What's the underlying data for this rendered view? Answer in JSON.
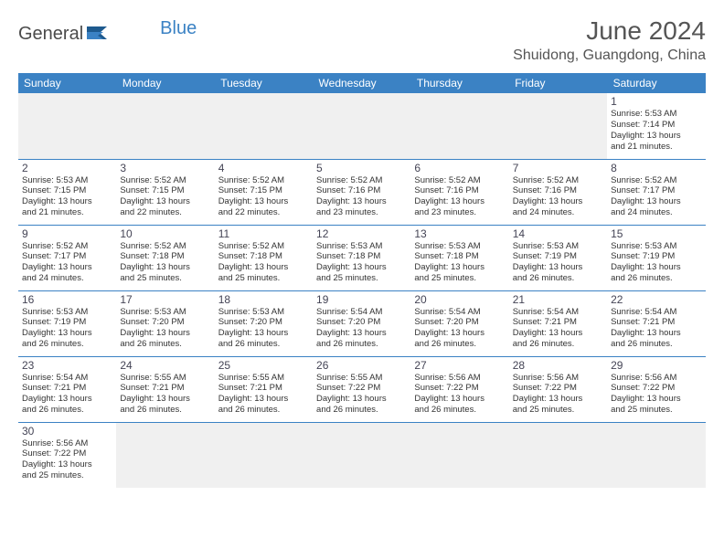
{
  "logo": {
    "part1": "General",
    "part2": "Blue"
  },
  "title": "June 2024",
  "location": "Shuidong, Guangdong, China",
  "colors": {
    "header_bg": "#3b82c4",
    "header_text": "#ffffff",
    "border": "#3b82c4",
    "empty_bg": "#f0f0f0",
    "text": "#333333",
    "title_color": "#555555"
  },
  "weekdays": [
    "Sunday",
    "Monday",
    "Tuesday",
    "Wednesday",
    "Thursday",
    "Friday",
    "Saturday"
  ],
  "weeks": [
    [
      null,
      null,
      null,
      null,
      null,
      null,
      {
        "d": "1",
        "sr": "5:53 AM",
        "ss": "7:14 PM",
        "dh": "13",
        "dm": "21"
      }
    ],
    [
      {
        "d": "2",
        "sr": "5:53 AM",
        "ss": "7:15 PM",
        "dh": "13",
        "dm": "21"
      },
      {
        "d": "3",
        "sr": "5:52 AM",
        "ss": "7:15 PM",
        "dh": "13",
        "dm": "22"
      },
      {
        "d": "4",
        "sr": "5:52 AM",
        "ss": "7:15 PM",
        "dh": "13",
        "dm": "22"
      },
      {
        "d": "5",
        "sr": "5:52 AM",
        "ss": "7:16 PM",
        "dh": "13",
        "dm": "23"
      },
      {
        "d": "6",
        "sr": "5:52 AM",
        "ss": "7:16 PM",
        "dh": "13",
        "dm": "23"
      },
      {
        "d": "7",
        "sr": "5:52 AM",
        "ss": "7:16 PM",
        "dh": "13",
        "dm": "24"
      },
      {
        "d": "8",
        "sr": "5:52 AM",
        "ss": "7:17 PM",
        "dh": "13",
        "dm": "24"
      }
    ],
    [
      {
        "d": "9",
        "sr": "5:52 AM",
        "ss": "7:17 PM",
        "dh": "13",
        "dm": "24"
      },
      {
        "d": "10",
        "sr": "5:52 AM",
        "ss": "7:18 PM",
        "dh": "13",
        "dm": "25"
      },
      {
        "d": "11",
        "sr": "5:52 AM",
        "ss": "7:18 PM",
        "dh": "13",
        "dm": "25"
      },
      {
        "d": "12",
        "sr": "5:53 AM",
        "ss": "7:18 PM",
        "dh": "13",
        "dm": "25"
      },
      {
        "d": "13",
        "sr": "5:53 AM",
        "ss": "7:18 PM",
        "dh": "13",
        "dm": "25"
      },
      {
        "d": "14",
        "sr": "5:53 AM",
        "ss": "7:19 PM",
        "dh": "13",
        "dm": "26"
      },
      {
        "d": "15",
        "sr": "5:53 AM",
        "ss": "7:19 PM",
        "dh": "13",
        "dm": "26"
      }
    ],
    [
      {
        "d": "16",
        "sr": "5:53 AM",
        "ss": "7:19 PM",
        "dh": "13",
        "dm": "26"
      },
      {
        "d": "17",
        "sr": "5:53 AM",
        "ss": "7:20 PM",
        "dh": "13",
        "dm": "26"
      },
      {
        "d": "18",
        "sr": "5:53 AM",
        "ss": "7:20 PM",
        "dh": "13",
        "dm": "26"
      },
      {
        "d": "19",
        "sr": "5:54 AM",
        "ss": "7:20 PM",
        "dh": "13",
        "dm": "26"
      },
      {
        "d": "20",
        "sr": "5:54 AM",
        "ss": "7:20 PM",
        "dh": "13",
        "dm": "26"
      },
      {
        "d": "21",
        "sr": "5:54 AM",
        "ss": "7:21 PM",
        "dh": "13",
        "dm": "26"
      },
      {
        "d": "22",
        "sr": "5:54 AM",
        "ss": "7:21 PM",
        "dh": "13",
        "dm": "26"
      }
    ],
    [
      {
        "d": "23",
        "sr": "5:54 AM",
        "ss": "7:21 PM",
        "dh": "13",
        "dm": "26"
      },
      {
        "d": "24",
        "sr": "5:55 AM",
        "ss": "7:21 PM",
        "dh": "13",
        "dm": "26"
      },
      {
        "d": "25",
        "sr": "5:55 AM",
        "ss": "7:21 PM",
        "dh": "13",
        "dm": "26"
      },
      {
        "d": "26",
        "sr": "5:55 AM",
        "ss": "7:22 PM",
        "dh": "13",
        "dm": "26"
      },
      {
        "d": "27",
        "sr": "5:56 AM",
        "ss": "7:22 PM",
        "dh": "13",
        "dm": "26"
      },
      {
        "d": "28",
        "sr": "5:56 AM",
        "ss": "7:22 PM",
        "dh": "13",
        "dm": "25"
      },
      {
        "d": "29",
        "sr": "5:56 AM",
        "ss": "7:22 PM",
        "dh": "13",
        "dm": "25"
      }
    ],
    [
      {
        "d": "30",
        "sr": "5:56 AM",
        "ss": "7:22 PM",
        "dh": "13",
        "dm": "25"
      },
      null,
      null,
      null,
      null,
      null,
      null
    ]
  ],
  "labels": {
    "sunrise": "Sunrise:",
    "sunset": "Sunset:",
    "daylight_pre": "Daylight:",
    "hours_word": "hours",
    "and_word": "and",
    "minutes_word": "minutes."
  }
}
